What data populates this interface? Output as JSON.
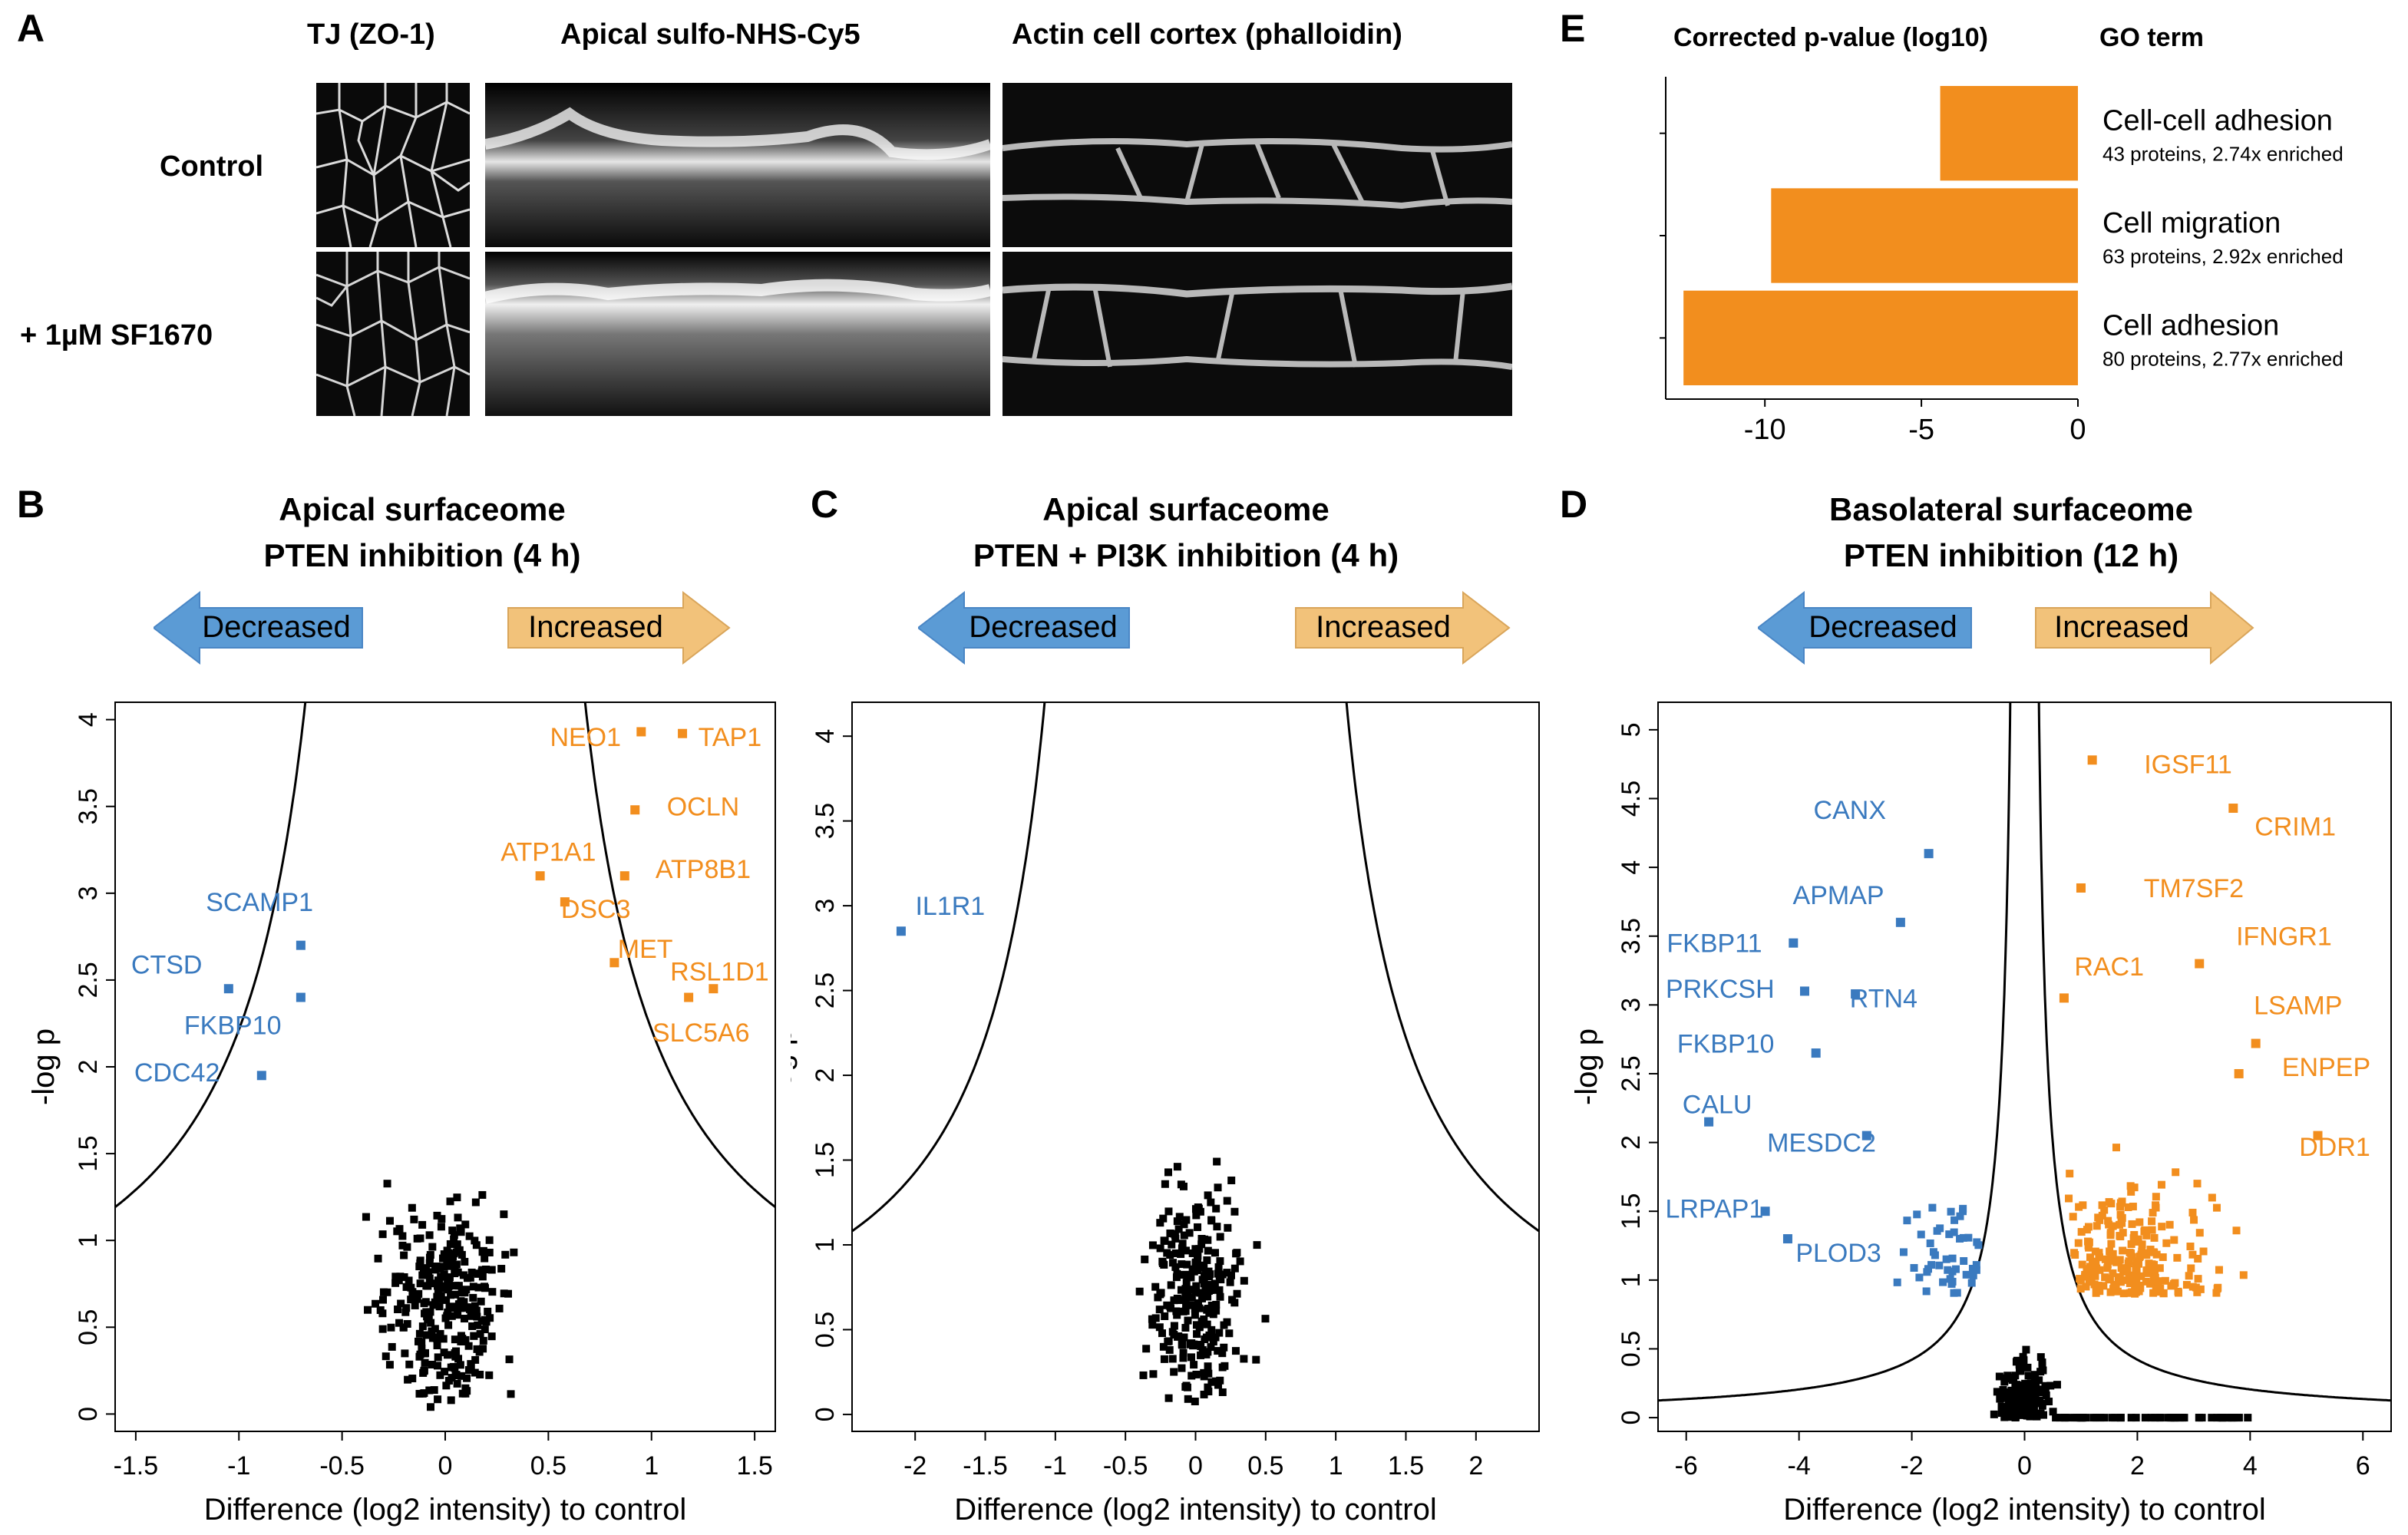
{
  "panel_letters": {
    "a": "A",
    "b": "B",
    "c": "C",
    "d": "D",
    "e": "E"
  },
  "panel_a": {
    "col_labels": [
      "TJ (ZO-1)",
      "Apical sulfo-NHS-Cy5",
      "Actin cell cortex (phalloidin)"
    ],
    "row_labels": [
      "Control",
      "+ 1µM SF1670"
    ]
  },
  "arrows": {
    "decreased": "Decreased",
    "increased": "Increased",
    "decreased_color": "#5b9bd5",
    "increased_color": "#f2c27a"
  },
  "colors": {
    "orange": "#f28e1e",
    "blue": "#3a7abf",
    "black": "#000000"
  },
  "chart_data": [
    {
      "id": "E",
      "type": "bar",
      "orientation": "horizontal",
      "title": "Corrected p-value (log10)",
      "category_header": "GO term",
      "categories": [
        "Cell-cell adhesion",
        "Cell migration",
        "Cell adhesion"
      ],
      "details": [
        "43 proteins, 2.74x enriched",
        "63 proteins, 2.92x enriched",
        "80 proteins, 2.77x enriched"
      ],
      "values": [
        -4.4,
        -9.8,
        -12.6
      ],
      "xlim": [
        -12.8,
        0
      ],
      "xticks": [
        -10,
        -5,
        0
      ],
      "color": "#f28e1e"
    },
    {
      "id": "B",
      "type": "scatter",
      "title": [
        "Apical surfaceome",
        "PTEN inhibition (4 h)"
      ],
      "xlabel": "Difference (log2 intensity) to control",
      "ylabel": "-log p",
      "xlim": [
        -1.6,
        1.6
      ],
      "ylim": [
        -0.1,
        4.1
      ],
      "xticks": [
        -1.5,
        -1,
        -0.5,
        0,
        0.5,
        1,
        1.5
      ],
      "yticks": [
        0,
        0.5,
        1,
        1.5,
        2,
        2.5,
        3,
        3.5,
        4
      ],
      "threshold_curve": {
        "s0": 0.3,
        "c": 1.55
      },
      "labeled_points": [
        {
          "label": "NEO1",
          "x": 0.95,
          "y": 3.93,
          "group": "increased",
          "lx": 0.68,
          "ly": 3.9
        },
        {
          "label": "TAP1",
          "x": 1.15,
          "y": 3.92,
          "group": "increased",
          "lx": 1.38,
          "ly": 3.9
        },
        {
          "label": "OCLN",
          "x": 0.92,
          "y": 3.48,
          "group": "increased",
          "lx": 1.25,
          "ly": 3.5
        },
        {
          "label": "ATP1A1",
          "x": 0.46,
          "y": 3.1,
          "group": "increased",
          "lx": 0.5,
          "ly": 3.24
        },
        {
          "label": "ATP8B1",
          "x": 0.87,
          "y": 3.1,
          "group": "increased",
          "lx": 1.25,
          "ly": 3.14
        },
        {
          "label": "DSC3",
          "x": 0.58,
          "y": 2.95,
          "group": "increased",
          "lx": 0.73,
          "ly": 2.91
        },
        {
          "label": "MET",
          "x": 0.82,
          "y": 2.6,
          "group": "increased",
          "lx": 0.97,
          "ly": 2.68
        },
        {
          "label": "RSL1D1",
          "x": 1.3,
          "y": 2.45,
          "group": "increased",
          "lx": 1.33,
          "ly": 2.55
        },
        {
          "label": "SLC5A6",
          "x": 1.18,
          "y": 2.4,
          "group": "increased",
          "lx": 1.24,
          "ly": 2.2
        },
        {
          "label": "SCAMP1",
          "x": -0.7,
          "y": 2.7,
          "group": "decreased",
          "lx": -0.9,
          "ly": 2.95
        },
        {
          "label": "CTSD",
          "x": -1.05,
          "y": 2.45,
          "group": "decreased",
          "lx": -1.35,
          "ly": 2.59
        },
        {
          "label": "FKBP10",
          "x": -0.7,
          "y": 2.4,
          "group": "decreased",
          "lx": -1.03,
          "ly": 2.24
        },
        {
          "label": "CDC42",
          "x": -0.89,
          "y": 1.95,
          "group": "decreased",
          "lx": -1.3,
          "ly": 1.97
        }
      ],
      "n_background": 300,
      "x_spread": 0.3,
      "y_max": 2.2
    },
    {
      "id": "C",
      "type": "scatter",
      "title": [
        "Apical surfaceome",
        "PTEN + PI3K inhibition (4 h)"
      ],
      "xlabel": "Difference (log2 intensity) to control",
      "ylabel": "-log p",
      "xlim": [
        -2.45,
        2.45
      ],
      "ylim": [
        -0.1,
        4.2
      ],
      "xticks": [
        -2,
        -1.5,
        -1,
        -0.5,
        0,
        0.5,
        1,
        1.5,
        2
      ],
      "yticks": [
        0,
        0.5,
        1,
        1.5,
        2,
        2.5,
        3,
        3.5,
        4
      ],
      "threshold_curve": {
        "s0": 0.6,
        "c": 2.0
      },
      "labeled_points": [
        {
          "label": "IL1R1",
          "x": -2.1,
          "y": 2.85,
          "group": "decreased",
          "lx": -1.75,
          "ly": 3.0
        }
      ],
      "n_background": 260,
      "x_spread": 0.33,
      "y_max": 2.8
    },
    {
      "id": "D",
      "type": "scatter",
      "title": [
        "Basolateral surfaceome",
        "PTEN inhibition (12 h)"
      ],
      "xlabel": "Difference (log2 intensity) to control",
      "ylabel": "-log p",
      "xlim": [
        -6.5,
        6.5
      ],
      "ylim": [
        -0.1,
        5.2
      ],
      "xticks": [
        -6,
        -4,
        -2,
        0,
        2,
        4,
        6
      ],
      "yticks": [
        0,
        0.5,
        1,
        1.5,
        2,
        2.5,
        3,
        3.5,
        4,
        4.5,
        5
      ],
      "threshold_curve": {
        "s0": 0.1,
        "c": 0.8
      },
      "labeled_points": [
        {
          "label": "IGSF11",
          "x": 1.2,
          "y": 4.78,
          "group": "increased",
          "lx": 2.9,
          "ly": 4.75
        },
        {
          "label": "CRIM1",
          "x": 3.7,
          "y": 4.43,
          "group": "increased",
          "lx": 4.8,
          "ly": 4.3
        },
        {
          "label": "TM7SF2",
          "x": 1.0,
          "y": 3.85,
          "group": "increased",
          "lx": 3.0,
          "ly": 3.85
        },
        {
          "label": "IFNGR1",
          "x": 3.1,
          "y": 3.3,
          "group": "increased",
          "lx": 4.6,
          "ly": 3.5
        },
        {
          "label": "RAC1",
          "x": 0.7,
          "y": 3.05,
          "group": "increased",
          "lx": 1.5,
          "ly": 3.28
        },
        {
          "label": "LSAMP",
          "x": 4.1,
          "y": 2.72,
          "group": "increased",
          "lx": 4.85,
          "ly": 3.0
        },
        {
          "label": "ENPEP",
          "x": 3.8,
          "y": 2.5,
          "group": "increased",
          "lx": 5.35,
          "ly": 2.55
        },
        {
          "label": "DDR1",
          "x": 5.2,
          "y": 2.05,
          "group": "increased",
          "lx": 5.5,
          "ly": 1.97
        },
        {
          "label": "CANX",
          "x": -1.7,
          "y": 4.1,
          "group": "decreased",
          "lx": -3.1,
          "ly": 4.42
        },
        {
          "label": "APMAP",
          "x": -2.2,
          "y": 3.6,
          "group": "decreased",
          "lx": -3.3,
          "ly": 3.8
        },
        {
          "label": "FKBP11",
          "x": -4.1,
          "y": 3.45,
          "group": "decreased",
          "lx": -5.5,
          "ly": 3.45
        },
        {
          "label": "PRKCSH",
          "x": -3.9,
          "y": 3.1,
          "group": "decreased",
          "lx": -5.4,
          "ly": 3.12
        },
        {
          "label": "RTN4",
          "x": -3.0,
          "y": 3.08,
          "group": "decreased",
          "lx": -2.5,
          "ly": 3.05
        },
        {
          "label": "FKBP10",
          "x": -3.7,
          "y": 2.65,
          "group": "decreased",
          "lx": -5.3,
          "ly": 2.72
        },
        {
          "label": "CALU",
          "x": -5.6,
          "y": 2.15,
          "group": "decreased",
          "lx": -5.45,
          "ly": 2.28
        },
        {
          "label": "MESDC2",
          "x": -2.8,
          "y": 2.05,
          "group": "decreased",
          "lx": -3.6,
          "ly": 2.0
        },
        {
          "label": "LRPAP1",
          "x": -4.6,
          "y": 1.5,
          "group": "decreased",
          "lx": -5.5,
          "ly": 1.52
        },
        {
          "label": "PLOD3",
          "x": -4.2,
          "y": 1.3,
          "group": "decreased",
          "lx": -3.3,
          "ly": 1.2
        }
      ],
      "n_background": 180,
      "n_orange": 240,
      "n_blue": 60
    }
  ]
}
